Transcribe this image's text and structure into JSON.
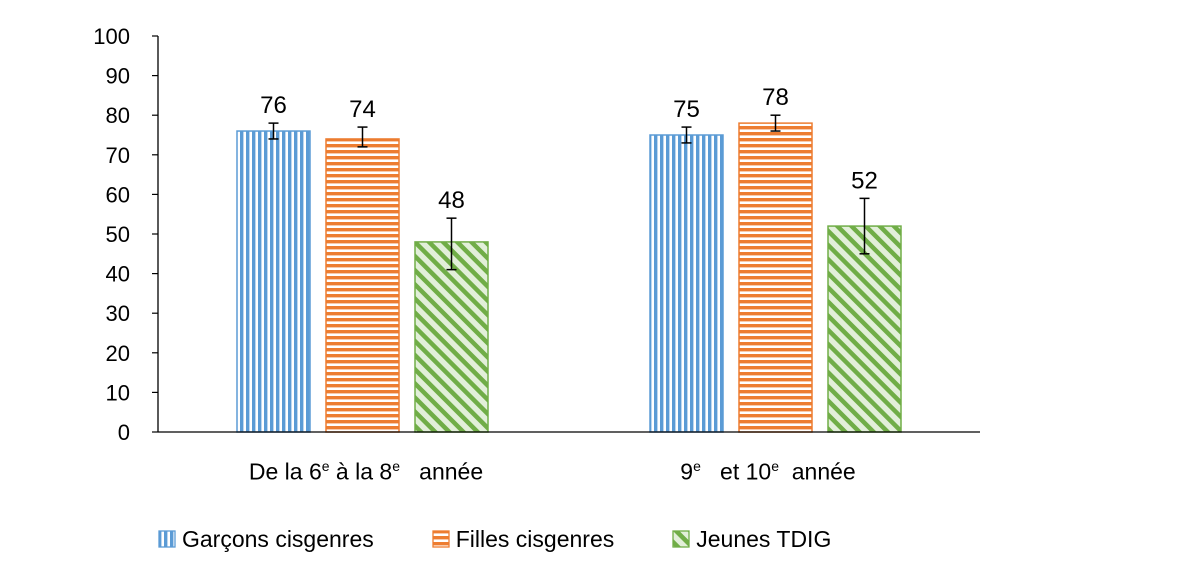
{
  "chart_data": {
    "type": "bar",
    "title": "",
    "xlabel": "",
    "ylabel": "",
    "ylim": [
      0,
      100
    ],
    "yticks": [
      0,
      10,
      20,
      30,
      40,
      50,
      60,
      70,
      80,
      90,
      100
    ],
    "categories": [
      {
        "pre": "De la 6",
        "sup1": "e",
        "mid": " à la 8",
        "sup2": "e",
        "post": "   année"
      },
      {
        "pre": "9",
        "sup1": "e",
        "mid": "   et 10",
        "sup2": "e",
        "post": "  année"
      }
    ],
    "series": [
      {
        "name": "Garçons cisgenres",
        "color": "#5b9bd5",
        "pattern": "vertical-stripes",
        "values": [
          76,
          75
        ],
        "error_low": [
          74,
          73
        ],
        "error_high": [
          78,
          77
        ]
      },
      {
        "name": "Filles cisgenres",
        "color": "#ed7d31",
        "pattern": "horizontal-stripes",
        "values": [
          74,
          78
        ],
        "error_low": [
          72,
          76
        ],
        "error_high": [
          77,
          80
        ]
      },
      {
        "name": "Jeunes TDIG",
        "color": "#70ad47",
        "pattern": "diagonal-stripes",
        "values": [
          48,
          52
        ],
        "error_low": [
          41,
          45
        ],
        "error_high": [
          54,
          59
        ]
      }
    ],
    "data_labels": [
      [
        "76",
        "75"
      ],
      [
        "74",
        "78"
      ],
      [
        "48",
        "52"
      ]
    ],
    "legend_position": "bottom",
    "grid": false
  }
}
